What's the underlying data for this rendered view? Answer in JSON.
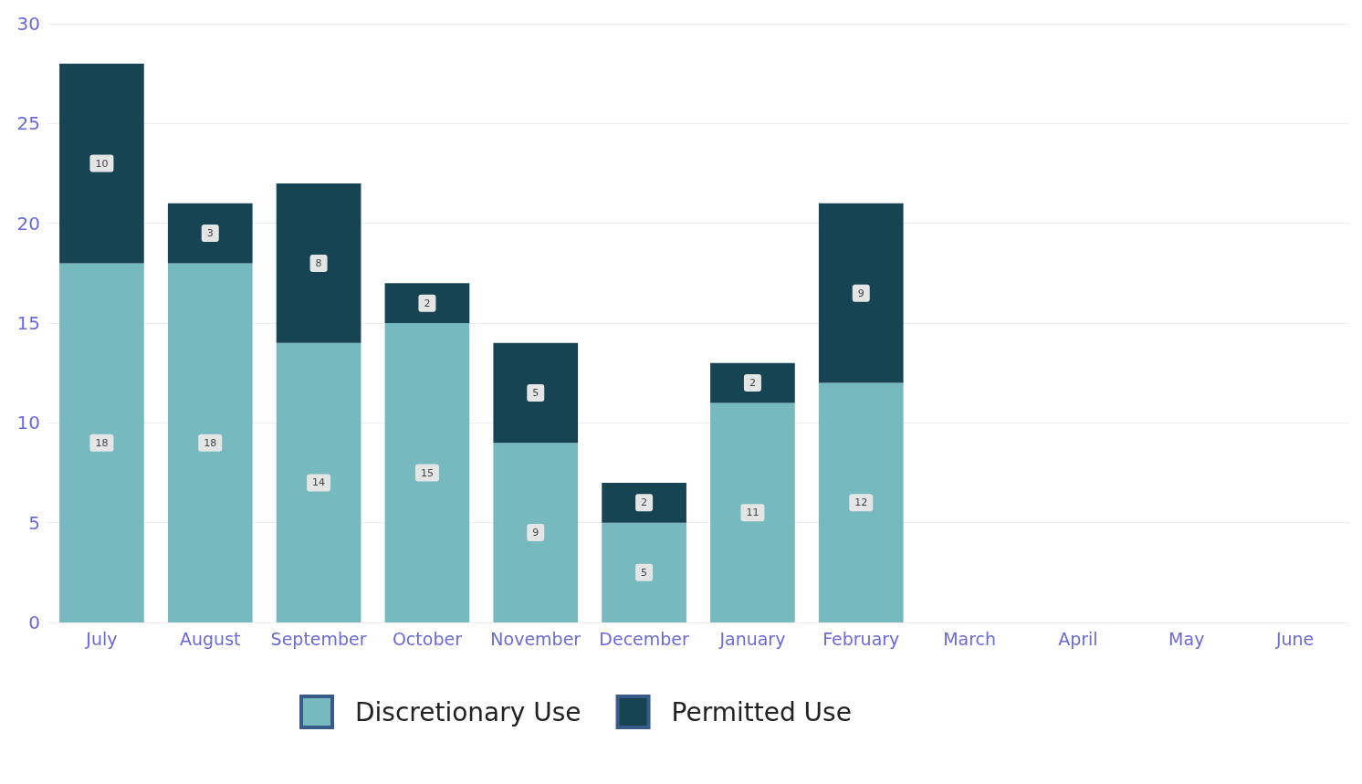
{
  "chart_data": {
    "type": "bar",
    "stacked": true,
    "categories": [
      "July",
      "August",
      "September",
      "October",
      "November",
      "December",
      "January",
      "February",
      "March",
      "April",
      "May",
      "June"
    ],
    "series": [
      {
        "name": "Discretionary Use",
        "color": "#76b9bf",
        "values": [
          18,
          18,
          14,
          15,
          9,
          5,
          11,
          12,
          null,
          null,
          null,
          null
        ]
      },
      {
        "name": "Permitted Use",
        "color": "#174452",
        "values": [
          10,
          3,
          8,
          2,
          5,
          2,
          2,
          9,
          null,
          null,
          null,
          null
        ]
      }
    ],
    "ylim": [
      0,
      30
    ],
    "yticks": [
      0,
      5,
      10,
      15,
      20,
      25,
      30
    ],
    "grid": "y",
    "legend": "bottom",
    "data_labels": true
  }
}
